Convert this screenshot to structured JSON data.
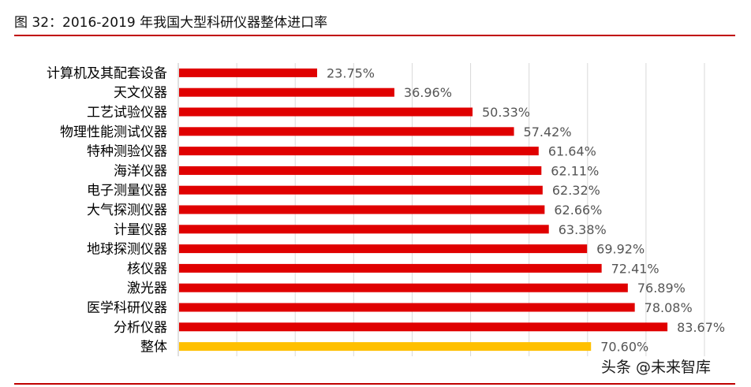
{
  "header": {
    "title": "图 32：2016-2019 年我国大型科研仪器整体进口率"
  },
  "watermark": "头条 @未来智库",
  "colors": {
    "rule": "#c00000",
    "bar": "#e00000",
    "highlight_bar": "#ffc000",
    "grid": "#d9d9d9",
    "label": "#555555"
  },
  "chart_data": {
    "type": "bar",
    "orientation": "horizontal",
    "categories": [
      "计算机及其配套设备",
      "天文仪器",
      "工艺试验仪器",
      "物理性能测试仪器",
      "特种测验仪器",
      "海洋仪器",
      "电子测量仪器",
      "大气探测仪器",
      "计量仪器",
      "地球探测仪器",
      "核仪器",
      "激光器",
      "医学科研仪器",
      "分析仪器",
      "整体"
    ],
    "values": [
      23.75,
      36.96,
      50.33,
      57.42,
      61.64,
      62.11,
      62.32,
      62.66,
      63.38,
      69.92,
      72.41,
      76.89,
      78.08,
      83.67,
      70.6
    ],
    "data_labels": [
      "23.75%",
      "36.96%",
      "50.33%",
      "57.42%",
      "61.64%",
      "62.11%",
      "62.32%",
      "62.66%",
      "63.38%",
      "69.92%",
      "72.41%",
      "76.89%",
      "78.08%",
      "83.67%",
      "70.60%"
    ],
    "highlight_category": "整体",
    "xlim": [
      0,
      90
    ],
    "grid": true,
    "xaxis_visible": false
  }
}
